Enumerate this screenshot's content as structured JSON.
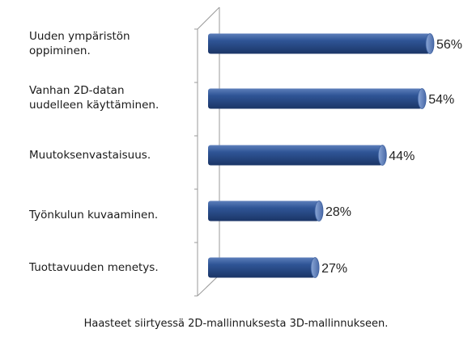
{
  "chart_data": {
    "type": "bar",
    "orientation": "horizontal",
    "style": "3d-cylinder",
    "categories": [
      "Uuden ympäristön oppiminen.",
      "Vanhan 2D-datan uudelleen käyttäminen.",
      "Muutoksenvastaisuus.",
      "Työnkulun kuvaaminen.",
      "Tuottavuuden menetys."
    ],
    "values": [
      56,
      54,
      44,
      28,
      27
    ],
    "value_labels": [
      "56%",
      "54%",
      "44%",
      "28%",
      "27%"
    ],
    "xlim": [
      0,
      56
    ],
    "title": "",
    "xlabel": "",
    "ylabel": "",
    "grid": false,
    "legend": "none",
    "colors": {
      "bar_main": "#2f5596",
      "bar_dark": "#1d3a6e",
      "bar_light": "#6f8fc4",
      "axis": "#9a9a9a"
    },
    "caption": "Haasteet siirtyessä 2D-mallinnuksesta 3D-mallinnukseen."
  },
  "labels": {
    "row1_line1": "Uuden ympäristön",
    "row1_line2": "oppiminen.",
    "row2_line1": "Vanhan 2D-datan",
    "row2_line2": "uudelleen käyttäminen.",
    "row3": "Muutoksenvastaisuus.",
    "row4": "Työnkulun kuvaaminen.",
    "row5": "Tuottavuuden menetys."
  }
}
